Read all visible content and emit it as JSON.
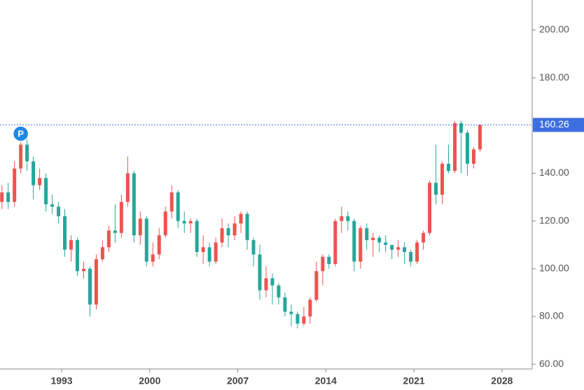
{
  "chart_data": {
    "type": "candlestick",
    "x": [
      1988.25,
      1988.75,
      1989.25,
      1989.75,
      1990.25,
      1990.75,
      1991.25,
      1991.75,
      1992.25,
      1992.75,
      1993.25,
      1993.75,
      1994.25,
      1994.75,
      1995.25,
      1995.75,
      1996.25,
      1996.75,
      1997.25,
      1997.75,
      1998.25,
      1998.75,
      1999.25,
      1999.75,
      2000.25,
      2000.75,
      2001.25,
      2001.75,
      2002.25,
      2002.75,
      2003.25,
      2003.75,
      2004.25,
      2004.75,
      2005.25,
      2005.75,
      2006.25,
      2006.75,
      2007.25,
      2007.75,
      2008.25,
      2008.75,
      2009.25,
      2009.75,
      2010.25,
      2010.75,
      2011.25,
      2011.75,
      2012.25,
      2012.75,
      2013.25,
      2013.75,
      2014.25,
      2014.75,
      2015.25,
      2015.75,
      2016.25,
      2016.75,
      2017.25,
      2017.75,
      2018.25,
      2018.75,
      2019.25,
      2019.75,
      2020.25,
      2020.75,
      2021.25,
      2021.75,
      2022.25,
      2022.75,
      2023.25,
      2023.75,
      2024.25,
      2024.75,
      2025.25,
      2025.75,
      2026.25
    ],
    "open": [
      128,
      132,
      128,
      142,
      152,
      145,
      135,
      138,
      127,
      126,
      122,
      108,
      112,
      99,
      100,
      85,
      104,
      109,
      116,
      115,
      128,
      140,
      114,
      121,
      103,
      106,
      114,
      124,
      132,
      120,
      119,
      120,
      107,
      109,
      103,
      111,
      117,
      114,
      119,
      123,
      112,
      106,
      91,
      96,
      93,
      88,
      82,
      81,
      77,
      80,
      87,
      99,
      105,
      102,
      120,
      122,
      120,
      103,
      117,
      112,
      113,
      111,
      110,
      108,
      109,
      107,
      103,
      111,
      115,
      136,
      131,
      144,
      141,
      161,
      157,
      144,
      150
    ],
    "high": [
      135,
      136,
      145,
      156,
      155,
      147,
      142,
      140,
      131,
      128,
      125,
      114,
      113,
      103,
      101,
      106,
      112,
      118,
      127,
      131,
      147,
      141,
      124,
      122,
      111,
      117,
      126,
      135,
      133,
      124,
      121,
      121,
      114,
      111,
      113,
      121,
      119,
      122,
      124,
      124,
      113,
      110,
      101,
      98,
      94,
      90,
      85,
      82,
      84,
      88,
      103,
      106,
      106,
      121,
      126,
      124,
      121,
      118,
      119,
      115,
      114,
      114,
      110,
      112,
      111,
      108,
      112,
      116,
      137,
      152,
      145,
      152,
      162,
      162,
      158,
      151,
      160.5
    ],
    "low": [
      125,
      125,
      126,
      140,
      141,
      129,
      133,
      124,
      123,
      119,
      105,
      103,
      97,
      96,
      80,
      83,
      103,
      107,
      111,
      113,
      126,
      111,
      110,
      101,
      101,
      104,
      113,
      121,
      117,
      115,
      115,
      105,
      102,
      101,
      102,
      109,
      109,
      112,
      115,
      108,
      101,
      87,
      88,
      85,
      85,
      80,
      76,
      75,
      76,
      77,
      86,
      93,
      100,
      101,
      115,
      116,
      99,
      100,
      108,
      105,
      107,
      107,
      104,
      105,
      102,
      101,
      102,
      108,
      114,
      127,
      127,
      140,
      140,
      140,
      139,
      142,
      149
    ],
    "close": [
      132,
      128,
      142,
      152,
      145,
      135,
      138,
      127,
      126,
      122,
      108,
      112,
      99,
      100,
      85,
      104,
      109,
      116,
      115,
      128,
      140,
      114,
      121,
      103,
      106,
      114,
      124,
      132,
      120,
      119,
      120,
      107,
      109,
      103,
      111,
      117,
      114,
      119,
      123,
      112,
      106,
      91,
      96,
      93,
      88,
      82,
      81,
      77,
      80,
      87,
      99,
      105,
      102,
      120,
      122,
      120,
      103,
      117,
      112,
      113,
      111,
      110,
      108,
      109,
      107,
      103,
      111,
      115,
      136,
      131,
      144,
      141,
      161,
      157,
      144,
      150,
      160.26
    ],
    "up_color": "#ef5350",
    "down_color": "#26a69a",
    "xlim": [
      1988.1,
      2030.4
    ],
    "xticks": [
      1993,
      2000,
      2007,
      2014,
      2021,
      2028
    ],
    "ylim": [
      58,
      212.6
    ],
    "yticks": [
      {
        "value": 60,
        "label": "60.00"
      },
      {
        "value": 80,
        "label": "80.00"
      },
      {
        "value": 100,
        "label": "100.00"
      },
      {
        "value": 120,
        "label": "120.00"
      },
      {
        "value": 140,
        "label": "140.00"
      },
      {
        "value": 160,
        "label": "160.00"
      },
      {
        "value": 180,
        "label": "180.00"
      },
      {
        "value": 200,
        "label": "200.00"
      }
    ],
    "last_price": {
      "value": 160.26,
      "label": "160.26",
      "color": "#3d6fe0"
    },
    "marker": {
      "label": "P",
      "x": 1989.75,
      "color": "#1e88e5"
    }
  }
}
